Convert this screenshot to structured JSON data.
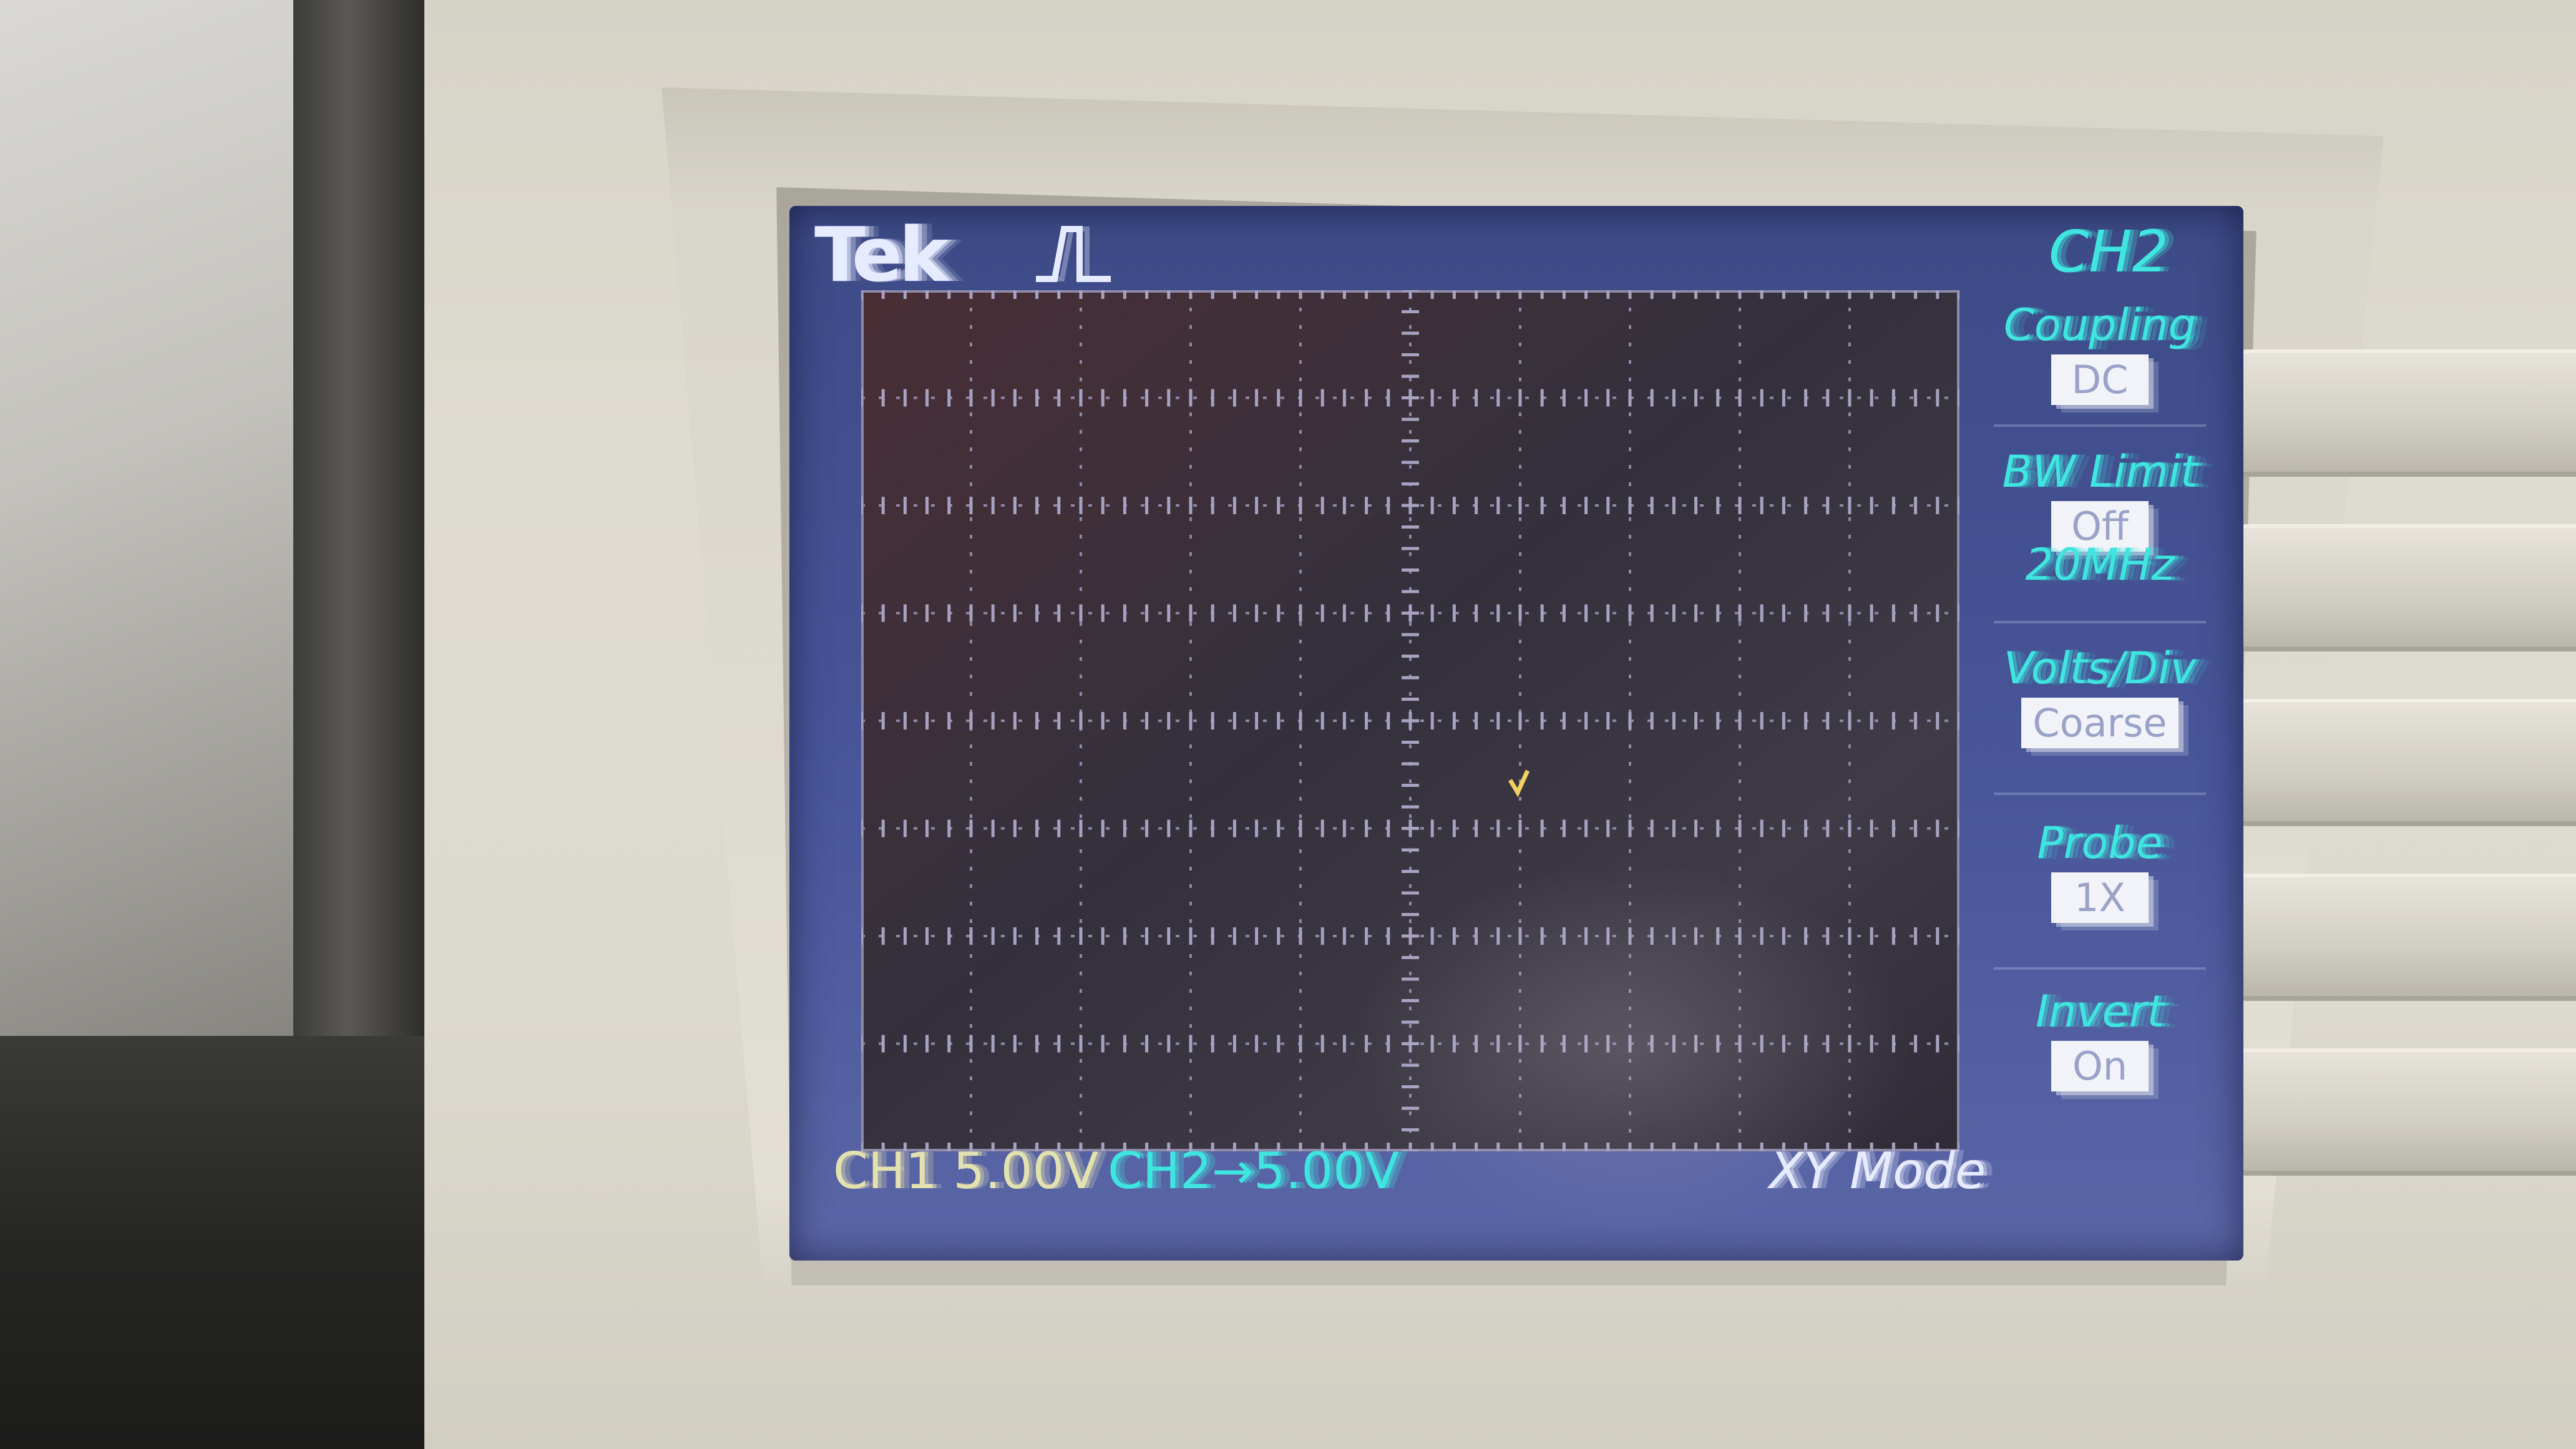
{
  "brand": "Tek",
  "trigger_icon": "rising-edge-trigger-icon",
  "menu": {
    "title": "CH2",
    "items": [
      {
        "label": "Coupling",
        "value": "DC"
      },
      {
        "label": "BW Limit",
        "sub": "20MHz",
        "value": "Off"
      },
      {
        "label": "Volts/Div",
        "value": "Coarse"
      },
      {
        "label": "Probe",
        "value": "1X"
      },
      {
        "label": "Invert",
        "value": "On"
      }
    ]
  },
  "status": {
    "ch1": "CH1  5.00V",
    "ch2": "CH2→5.00V",
    "mode": "XY Mode"
  },
  "colors": {
    "screen_bg": "#44529a",
    "plot_bg": "#3b2f3c",
    "menu_text": "#3fe6e0",
    "ch1_text": "#e4e1b0",
    "trace": "#f0d060"
  }
}
